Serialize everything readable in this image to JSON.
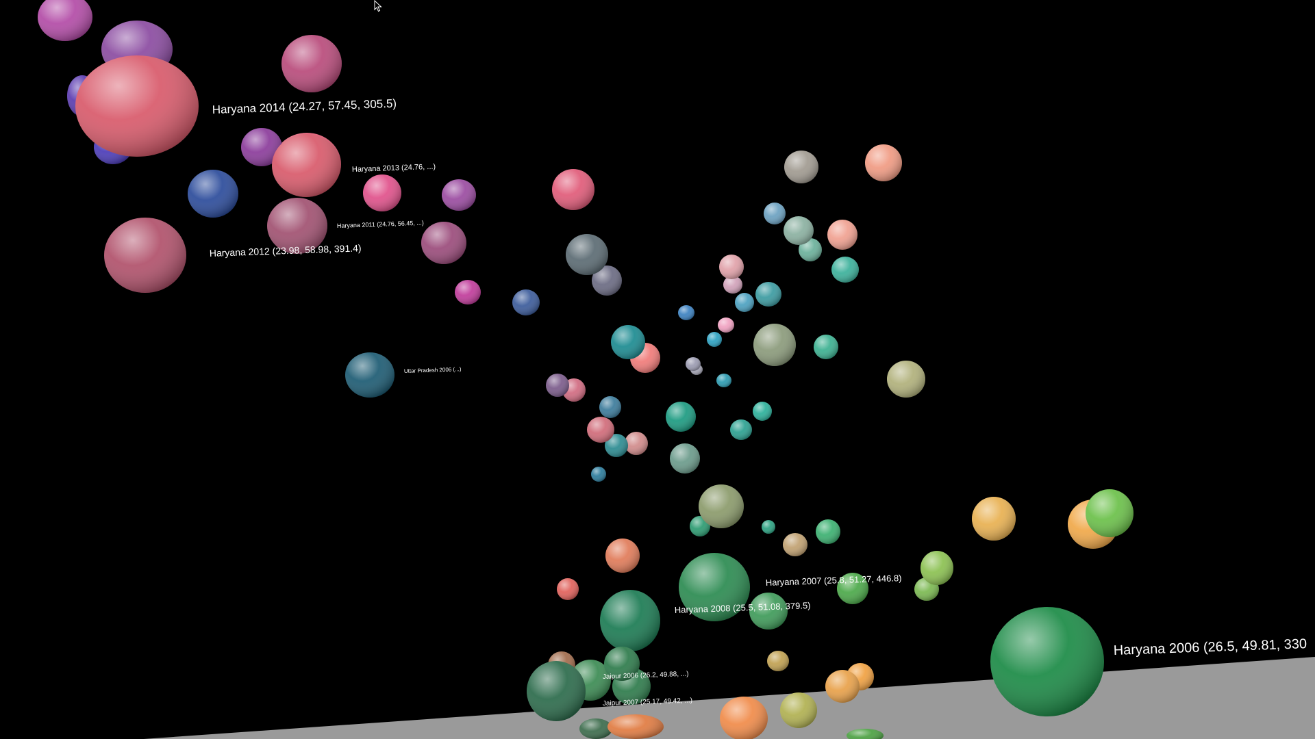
{
  "chart_data": {
    "type": "scatter",
    "title": "",
    "xlabel": "",
    "ylabel": "",
    "zlabel": "",
    "legend": "none",
    "grid": false,
    "floor_color": "#9a9a9a",
    "label_color": "#ffffff",
    "points": [
      {
        "label": "Haryana 2014 (24.27, 57.45, 305.5)",
        "state": "Haryana",
        "year": 2014,
        "values": [
          24.27,
          57.45,
          305.5
        ],
        "color": "#d8596a"
      },
      {
        "label": "Haryana 2012 (23.98, 58.98, 391.4)",
        "state": "Haryana",
        "year": 2012,
        "values": [
          23.98,
          58.98,
          391.4
        ],
        "color": "#b0506a"
      },
      {
        "label": "Haryana 2006 (26.5, 49.81, 330",
        "state": "Haryana",
        "year": 2006,
        "values": [
          26.5,
          49.81
        ],
        "color": "#1a8a45"
      },
      {
        "label": "Haryana 2007 (25.8, 51.27, 446.8)",
        "state": "Haryana",
        "year": 2007,
        "values": [
          25.8,
          51.27,
          446.8
        ],
        "color": "#2a8a50"
      },
      {
        "label": "Haryana 2013 (24.76, ...)",
        "state": "Haryana",
        "year": 2013,
        "values": [
          24.76
        ],
        "color": "#d8596a"
      },
      {
        "label": "Haryana 2011 (24.76, 56.45, ...)",
        "state": "Haryana",
        "year": 2011,
        "values": [
          24.76,
          56.45
        ],
        "color": "#a05070"
      },
      {
        "label": "Haryana 2008 (25.5, 51.08, 379.5)",
        "state": "Haryana",
        "year": 2008,
        "values": [
          25.5,
          51.08,
          379.5
        ],
        "color": "#3d9a58"
      },
      {
        "label": "Uttar Pradesh 2006 (...)",
        "state": "Uttar Pradesh",
        "year": 2006,
        "values": [],
        "color": "#1b5a72"
      },
      {
        "label": "Jaipur 2007 (25.17, 49.42, ...)",
        "state": "",
        "year": 2007,
        "values": [
          25.17,
          49.42
        ],
        "color": "#2c7a4a"
      },
      {
        "label": "Jaipur 2006 (26.2, 49.88, ...)",
        "state": "",
        "year": 2006,
        "values": [
          26.2,
          49.88
        ],
        "color": "#2c7a4a"
      }
    ]
  }
}
